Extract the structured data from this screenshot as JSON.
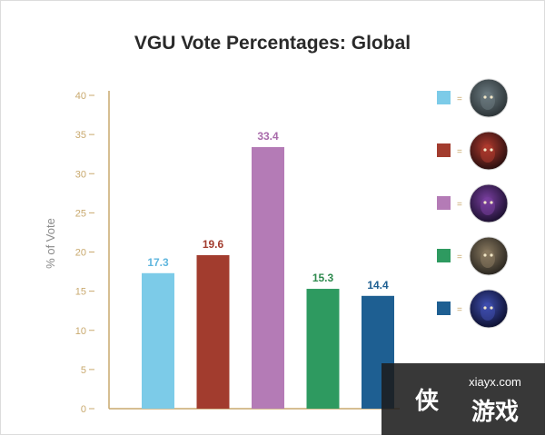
{
  "chart_data": {
    "type": "bar",
    "title": "VGU Vote Percentages: Global",
    "ylabel": "% of Vote",
    "xlabel": "",
    "ylim": [
      0,
      40
    ],
    "yticks": [
      0,
      5,
      10,
      15,
      20,
      25,
      30,
      35,
      40
    ],
    "grid": false,
    "legend_position": "right",
    "value_labels_shown": true,
    "values": [
      17.3,
      19.6,
      33.4,
      15.3,
      14.4
    ],
    "colors": [
      "#7ccbe8",
      "#a23c2e",
      "#b47bb6",
      "#2e9a60",
      "#1e5f92"
    ],
    "label_colors": [
      "#5fb6de",
      "#a23c2e",
      "#a86aaa",
      "#2e8a4e",
      "#1e5f92"
    ],
    "legend": [
      {
        "color": "#7ccbe8",
        "symbol": "=",
        "icon": "champion-portrait-1-icon"
      },
      {
        "color": "#a23c2e",
        "symbol": "=",
        "icon": "champion-portrait-2-icon"
      },
      {
        "color": "#b47bb6",
        "symbol": "=",
        "icon": "champion-portrait-3-icon"
      },
      {
        "color": "#2e9a60",
        "symbol": "=",
        "icon": "champion-portrait-4-icon"
      },
      {
        "color": "#1e5f92",
        "symbol": "=",
        "icon": "champion-portrait-5-icon"
      }
    ]
  },
  "watermark": {
    "site": "xiayx.com",
    "brand_glyph": "侠",
    "brand_text": "游戏"
  }
}
